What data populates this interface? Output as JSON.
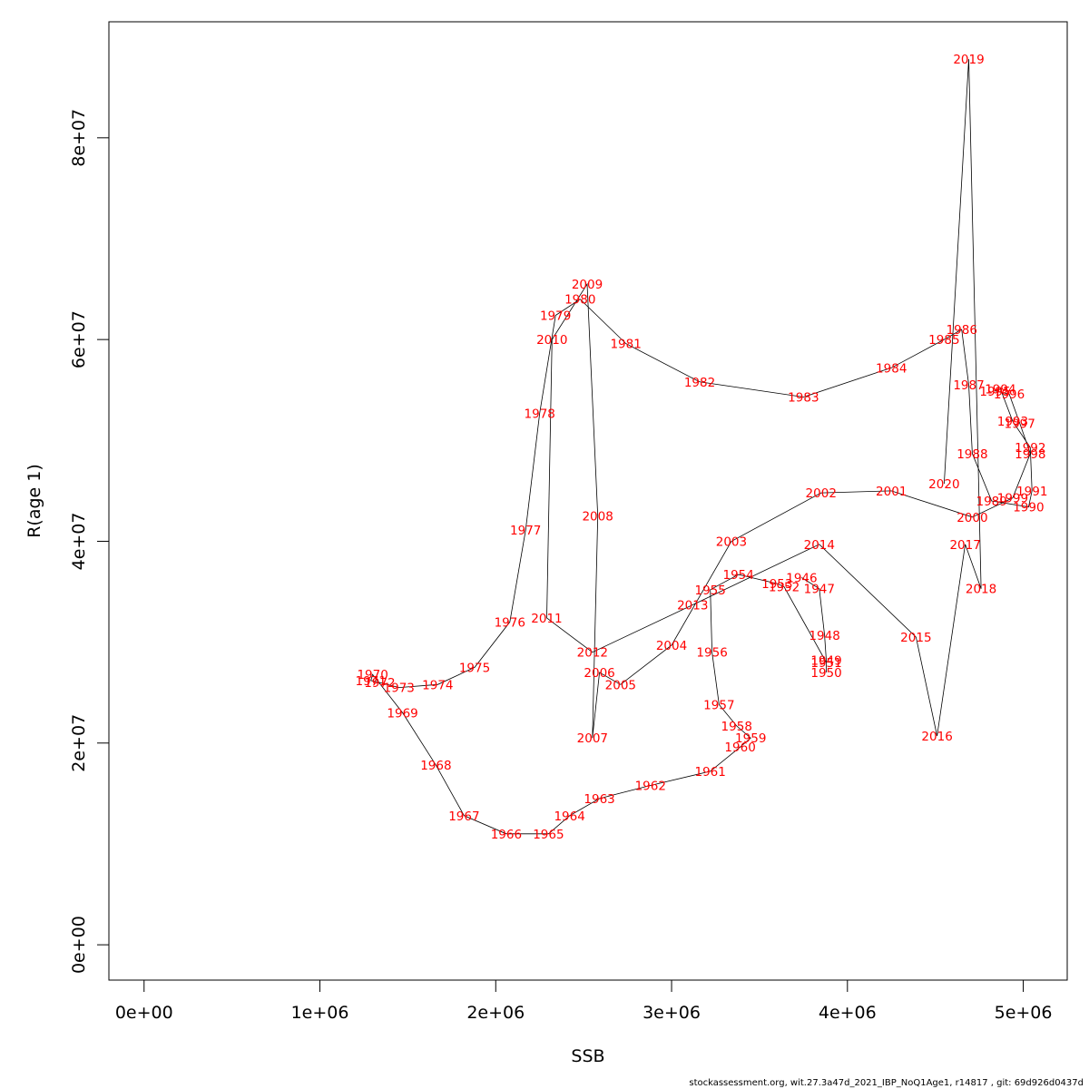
{
  "footer": "stockassessment.org, wit.27.3a47d_2021_IBP_NoQ1Age1, r14817 , git: 69d926d0437d",
  "chart_data": {
    "type": "line",
    "xlabel": "SSB",
    "ylabel": "R(age 1)",
    "xlim": [
      -200000,
      5250000
    ],
    "ylim": [
      -3500000,
      91500000
    ],
    "xticks": [
      0,
      1000000,
      2000000,
      3000000,
      4000000,
      5000000
    ],
    "xtick_labels": [
      "0e+00",
      "1e+06",
      "2e+06",
      "3e+06",
      "4e+06",
      "5e+06"
    ],
    "yticks": [
      0,
      20000000,
      40000000,
      60000000,
      80000000
    ],
    "ytick_labels": [
      "0e+00",
      "2e+07",
      "4e+07",
      "6e+07",
      "8e+07"
    ],
    "grid": false,
    "line_color": "#000000",
    "label_color": "#ff0000",
    "points": [
      {
        "year": "1946",
        "x": 3740000,
        "y": 36400000
      },
      {
        "year": "1947",
        "x": 3840000,
        "y": 35300000
      },
      {
        "year": "1948",
        "x": 3870000,
        "y": 30700000
      },
      {
        "year": "1949",
        "x": 3880000,
        "y": 28200000
      },
      {
        "year": "1950",
        "x": 3880000,
        "y": 27000000
      },
      {
        "year": "1951",
        "x": 3880000,
        "y": 28000000
      },
      {
        "year": "1952",
        "x": 3640000,
        "y": 35500000
      },
      {
        "year": "1953",
        "x": 3600000,
        "y": 35800000
      },
      {
        "year": "1954",
        "x": 3380000,
        "y": 36700000
      },
      {
        "year": "1955",
        "x": 3220000,
        "y": 35200000
      },
      {
        "year": "1956",
        "x": 3230000,
        "y": 29000000
      },
      {
        "year": "1957",
        "x": 3270000,
        "y": 23800000
      },
      {
        "year": "1958",
        "x": 3370000,
        "y": 21700000
      },
      {
        "year": "1959",
        "x": 3450000,
        "y": 20500000
      },
      {
        "year": "1960",
        "x": 3390000,
        "y": 19600000
      },
      {
        "year": "1961",
        "x": 3220000,
        "y": 17200000
      },
      {
        "year": "1962",
        "x": 2880000,
        "y": 15800000
      },
      {
        "year": "1963",
        "x": 2590000,
        "y": 14500000
      },
      {
        "year": "1964",
        "x": 2420000,
        "y": 12800000
      },
      {
        "year": "1965",
        "x": 2300000,
        "y": 11000000
      },
      {
        "year": "1966",
        "x": 2060000,
        "y": 11000000
      },
      {
        "year": "1967",
        "x": 1820000,
        "y": 12800000
      },
      {
        "year": "1968",
        "x": 1660000,
        "y": 17800000
      },
      {
        "year": "1969",
        "x": 1470000,
        "y": 23000000
      },
      {
        "year": "1970",
        "x": 1300000,
        "y": 26800000
      },
      {
        "year": "1971",
        "x": 1290000,
        "y": 26200000
      },
      {
        "year": "1972",
        "x": 1340000,
        "y": 26000000
      },
      {
        "year": "1973",
        "x": 1450000,
        "y": 25500000
      },
      {
        "year": "1974",
        "x": 1670000,
        "y": 25800000
      },
      {
        "year": "1975",
        "x": 1880000,
        "y": 27500000
      },
      {
        "year": "1976",
        "x": 2080000,
        "y": 32000000
      },
      {
        "year": "1977",
        "x": 2170000,
        "y": 41100000
      },
      {
        "year": "1978",
        "x": 2250000,
        "y": 52700000
      },
      {
        "year": "1979",
        "x": 2340000,
        "y": 62400000
      },
      {
        "year": "1980",
        "x": 2480000,
        "y": 64000000
      },
      {
        "year": "1981",
        "x": 2740000,
        "y": 59600000
      },
      {
        "year": "1982",
        "x": 3160000,
        "y": 55800000
      },
      {
        "year": "1983",
        "x": 3750000,
        "y": 54300000
      },
      {
        "year": "1984",
        "x": 4250000,
        "y": 57200000
      },
      {
        "year": "1985",
        "x": 4550000,
        "y": 60000000
      },
      {
        "year": "1986",
        "x": 4650000,
        "y": 61000000
      },
      {
        "year": "1987",
        "x": 4690000,
        "y": 55500000
      },
      {
        "year": "1988",
        "x": 4710000,
        "y": 48700000
      },
      {
        "year": "1989",
        "x": 4820000,
        "y": 44000000
      },
      {
        "year": "1990",
        "x": 5030000,
        "y": 43400000
      },
      {
        "year": "1991",
        "x": 5050000,
        "y": 45000000
      },
      {
        "year": "1992",
        "x": 5040000,
        "y": 49300000
      },
      {
        "year": "1993",
        "x": 4940000,
        "y": 51900000
      },
      {
        "year": "1994",
        "x": 4870000,
        "y": 55100000
      },
      {
        "year": "1995",
        "x": 4840000,
        "y": 54900000
      },
      {
        "year": "1996",
        "x": 4920000,
        "y": 54600000
      },
      {
        "year": "1997",
        "x": 4980000,
        "y": 51700000
      },
      {
        "year": "1998",
        "x": 5040000,
        "y": 48700000
      },
      {
        "year": "1999",
        "x": 4940000,
        "y": 44300000
      },
      {
        "year": "2000",
        "x": 4710000,
        "y": 42400000
      },
      {
        "year": "2001",
        "x": 4250000,
        "y": 45000000
      },
      {
        "year": "2002",
        "x": 3850000,
        "y": 44800000
      },
      {
        "year": "2003",
        "x": 3340000,
        "y": 40000000
      },
      {
        "year": "2004",
        "x": 3000000,
        "y": 29700000
      },
      {
        "year": "2005",
        "x": 2710000,
        "y": 25800000
      },
      {
        "year": "2006",
        "x": 2590000,
        "y": 27000000
      },
      {
        "year": "2007",
        "x": 2550000,
        "y": 20500000
      },
      {
        "year": "2008",
        "x": 2580000,
        "y": 42500000
      },
      {
        "year": "2009",
        "x": 2520000,
        "y": 65500000
      },
      {
        "year": "2010",
        "x": 2320000,
        "y": 60000000
      },
      {
        "year": "2011",
        "x": 2290000,
        "y": 32400000
      },
      {
        "year": "2012",
        "x": 2550000,
        "y": 29000000
      },
      {
        "year": "2013",
        "x": 3120000,
        "y": 33700000
      },
      {
        "year": "2014",
        "x": 3840000,
        "y": 39700000
      },
      {
        "year": "2015",
        "x": 4390000,
        "y": 30500000
      },
      {
        "year": "2016",
        "x": 4510000,
        "y": 20700000
      },
      {
        "year": "2017",
        "x": 4670000,
        "y": 39700000
      },
      {
        "year": "2018",
        "x": 4760000,
        "y": 35300000
      },
      {
        "year": "2019",
        "x": 4690000,
        "y": 87800000
      },
      {
        "year": "2020",
        "x": 4550000,
        "y": 45700000
      }
    ]
  }
}
